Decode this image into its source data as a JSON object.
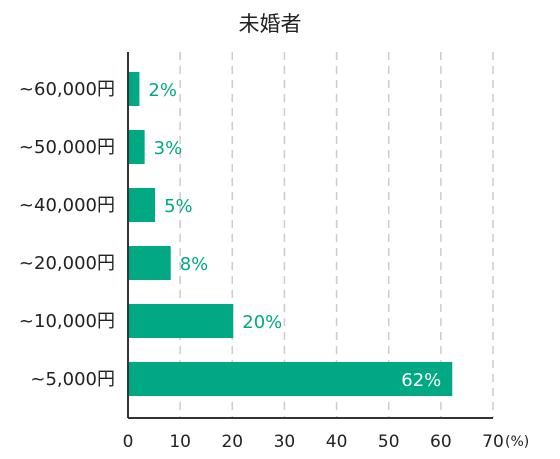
{
  "chart_data": {
    "type": "bar",
    "orientation": "horizontal",
    "title": "未婚者",
    "categories": [
      "~60,000円",
      "~50,000円",
      "~40,000円",
      "~20,000円",
      "~10,000円",
      "~5,000円"
    ],
    "values": [
      2,
      3,
      5,
      8,
      20,
      62
    ],
    "data_labels": [
      "2%",
      "3%",
      "5%",
      "8%",
      "20%",
      "62%"
    ],
    "xlim": [
      0,
      70
    ],
    "x_ticks": [
      "0",
      "10",
      "20",
      "30",
      "40",
      "50",
      "60",
      "70"
    ],
    "x_unit": "(%)",
    "grid": "vertical-dashed",
    "colors": {
      "bar": "#00a984",
      "label_outside": "#00a984",
      "label_inside": "#ffffff",
      "grid": "#cccccc",
      "axis": "#333333"
    }
  }
}
